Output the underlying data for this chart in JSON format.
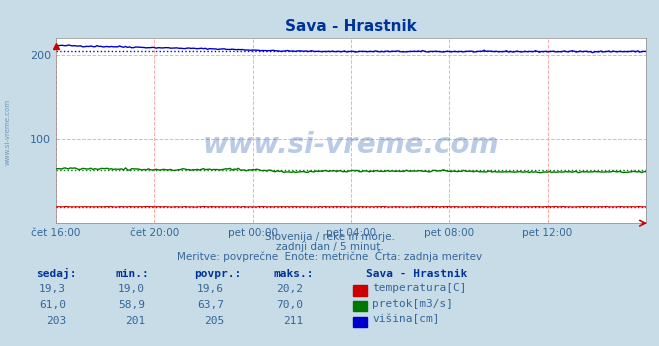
{
  "title": "Sava - Hrastnik",
  "bg_color": "#c8dce8",
  "plot_bg_color": "#ffffff",
  "xlabel": "",
  "ylabel": "",
  "xlim": [
    0,
    288
  ],
  "ylim": [
    0,
    220
  ],
  "yticks": [
    100,
    200
  ],
  "x_tick_labels": [
    "čet 16:00",
    "čet 20:00",
    "pet 00:00",
    "pet 04:00",
    "pet 08:00",
    "pet 12:00"
  ],
  "x_tick_positions": [
    0,
    48,
    96,
    144,
    192,
    240
  ],
  "grid_color_v": "#ffaaaa",
  "grid_color_h": "#ffaaaa",
  "watermark": "www.si-vreme.com",
  "watermark_color": "#2255aa",
  "side_text": "www.si-vreme.com",
  "temp_color": "#cc0000",
  "flow_color": "#007700",
  "height_color": "#0000cc",
  "flow_avg": 63.7,
  "height_avg": 205,
  "temp_avg": 19.6,
  "subtitle1": "Slovenija / reke in morje.",
  "subtitle2": "zadnji dan / 5 minut.",
  "subtitle3": "Meritve: povprečne  Enote: metrične  Črta: zadnja meritev",
  "legend_title": "Sava - Hrastnik",
  "legend_items": [
    "temperatura[C]",
    "pretok[m3/s]",
    "višina[cm]"
  ],
  "legend_colors": [
    "#cc0000",
    "#007700",
    "#0000cc"
  ],
  "table_headers": [
    "sedaj:",
    "min.:",
    "povpr.:",
    "maks.:"
  ],
  "table_data": [
    [
      "19,3",
      "19,0",
      "19,6",
      "20,2"
    ],
    [
      "61,0",
      "58,9",
      "63,7",
      "70,0"
    ],
    [
      "203",
      "201",
      "205",
      "211"
    ]
  ]
}
